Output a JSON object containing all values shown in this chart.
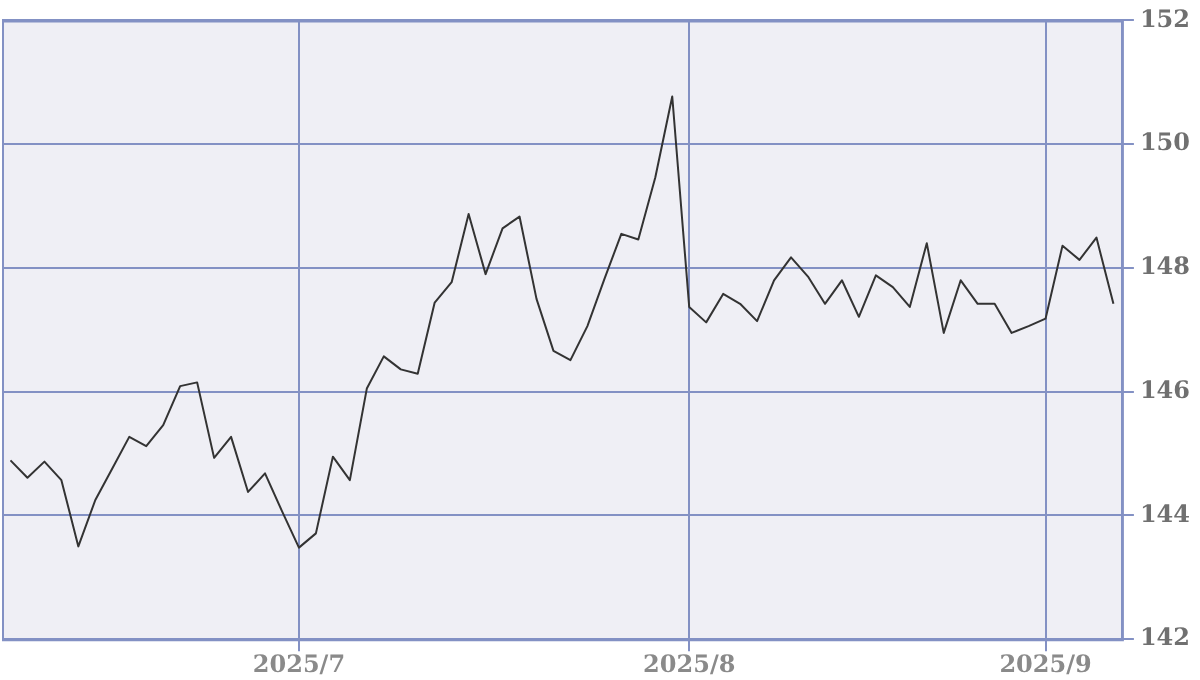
{
  "chart_data": {
    "type": "line",
    "categories": [
      null,
      null,
      null,
      null,
      null,
      null,
      null,
      null,
      null,
      null,
      null,
      null,
      null,
      null,
      null,
      null,
      null,
      "2025/7",
      null,
      null,
      null,
      null,
      null,
      null,
      null,
      null,
      null,
      null,
      null,
      null,
      null,
      null,
      null,
      null,
      null,
      null,
      null,
      null,
      null,
      null,
      "2025/8",
      null,
      null,
      null,
      null,
      null,
      null,
      null,
      null,
      null,
      null,
      null,
      null,
      null,
      null,
      null,
      null,
      null,
      null,
      null,
      null,
      "2025/9",
      null,
      null,
      null,
      null
    ],
    "series": [
      {
        "color": "#333333",
        "values": [
          144.89,
          144.61,
          144.87,
          144.57,
          143.5,
          144.25,
          144.76,
          145.27,
          145.12,
          145.46,
          146.09,
          146.15,
          144.93,
          145.27,
          144.38,
          144.68,
          144.07,
          143.48,
          143.71,
          144.95,
          144.57,
          146.05,
          146.57,
          146.36,
          146.29,
          147.44,
          147.77,
          148.87,
          147.9,
          148.64,
          148.83,
          147.5,
          146.66,
          146.51,
          147.06,
          147.82,
          148.55,
          148.46,
          149.46,
          150.77,
          147.37,
          147.12,
          147.58,
          147.42,
          147.14,
          147.8,
          148.17,
          147.86,
          147.42,
          147.8,
          147.21,
          147.88,
          147.69,
          147.37,
          148.4,
          146.95,
          147.8,
          147.42,
          147.42,
          146.95,
          147.06,
          147.18,
          148.36,
          148.13,
          148.49,
          147.42
        ]
      }
    ],
    "ylim": [
      142,
      152
    ],
    "yticks": [
      142,
      144,
      146,
      148,
      150,
      152
    ],
    "grid": true,
    "marker": "none",
    "line_style": "solid"
  }
}
